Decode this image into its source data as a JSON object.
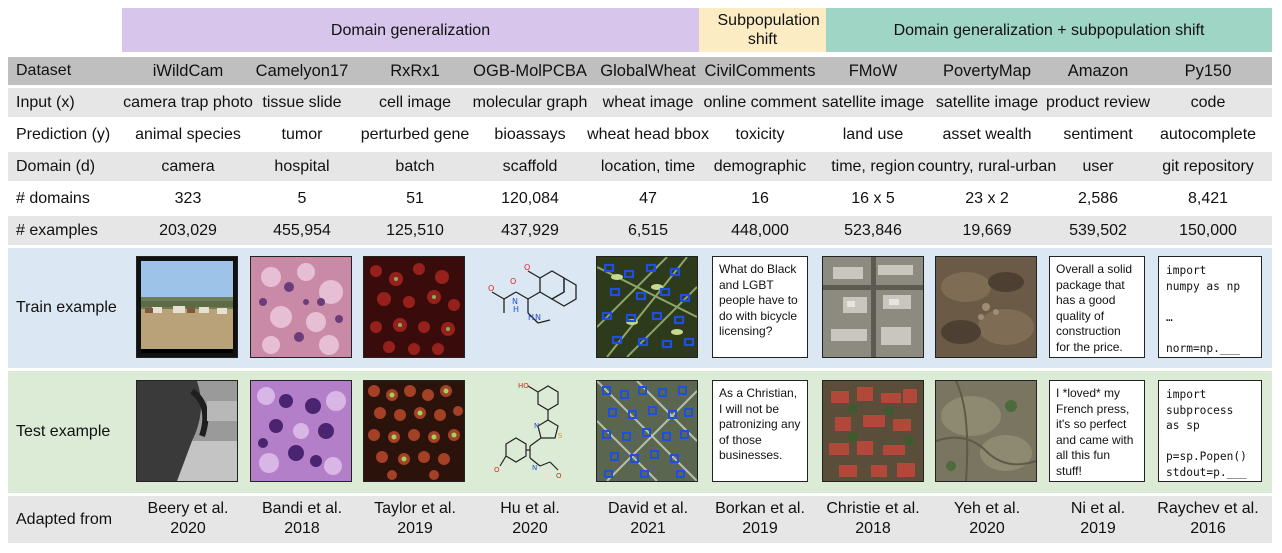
{
  "groups": [
    {
      "label": "Domain generalization",
      "color": "#d7c5eb"
    },
    {
      "label": "Subpopulation shift",
      "color": "#fbecc4"
    },
    {
      "label": "Domain generalization + subpopulation shift",
      "color": "#9fd5c4"
    }
  ],
  "row_labels": {
    "dataset": "Dataset",
    "input": "Input (x)",
    "prediction": "Prediction (y)",
    "domain": "Domain (d)",
    "num_domains": "# domains",
    "num_examples": "# examples",
    "train": "Train example",
    "test": "Test example",
    "adapted": "Adapted from"
  },
  "datasets": [
    {
      "name": "iWildCam",
      "input": "camera trap photo",
      "prediction": "animal species",
      "domain": "camera",
      "num_domains": "323",
      "num_examples": "203,029",
      "adapted_1": "Beery et al.",
      "adapted_2": "2020"
    },
    {
      "name": "Camelyon17",
      "input": "tissue slide",
      "prediction": "tumor",
      "domain": "hospital",
      "num_domains": "5",
      "num_examples": "455,954",
      "adapted_1": "Bandi et al.",
      "adapted_2": "2018"
    },
    {
      "name": "RxRx1",
      "input": "cell image",
      "prediction": "perturbed gene",
      "domain": "batch",
      "num_domains": "51",
      "num_examples": "125,510",
      "adapted_1": "Taylor et al.",
      "adapted_2": "2019"
    },
    {
      "name": "OGB-MolPCBA",
      "input": "molecular graph",
      "prediction": "bioassays",
      "domain": "scaffold",
      "num_domains": "120,084",
      "num_examples": "437,929",
      "adapted_1": "Hu et al.",
      "adapted_2": "2020"
    },
    {
      "name": "GlobalWheat",
      "input": "wheat image",
      "prediction": "wheat head bbox",
      "domain": "location, time",
      "num_domains": "47",
      "num_examples": "6,515",
      "adapted_1": "David et al.",
      "adapted_2": "2021"
    },
    {
      "name": "CivilComments",
      "input": "online comment",
      "prediction": "toxicity",
      "domain": "demographic",
      "num_domains": "16",
      "num_examples": "448,000",
      "adapted_1": "Borkan et al.",
      "adapted_2": "2019"
    },
    {
      "name": "FMoW",
      "input": "satellite image",
      "prediction": "land use",
      "domain": "time, region",
      "num_domains": "16 x 5",
      "num_examples": "523,846",
      "adapted_1": "Christie et al.",
      "adapted_2": "2018"
    },
    {
      "name": "PovertyMap",
      "input": "satellite image",
      "prediction": "asset wealth",
      "domain": "country, rural-urban",
      "num_domains": "23 x 2",
      "num_examples": "19,669",
      "adapted_1": "Yeh et al.",
      "adapted_2": "2020"
    },
    {
      "name": "Amazon",
      "input": "product review",
      "prediction": "sentiment",
      "domain": "user",
      "num_domains": "2,586",
      "num_examples": "539,502",
      "adapted_1": "Ni et al.",
      "adapted_2": "2019"
    },
    {
      "name": "Py150",
      "input": "code",
      "prediction": "autocomplete",
      "domain": "git repository",
      "num_domains": "8,421",
      "num_examples": "150,000",
      "adapted_1": "Raychev et al.",
      "adapted_2": "2016"
    }
  ],
  "examples": {
    "civil_train": "What do Black and LGBT people have to do with bicycle licensing?",
    "civil_test": "As a Christian, I will not be patronizing any of those businesses.",
    "amazon_train": "Overall a solid package that has a good quality of construction for the price.",
    "amazon_test": "I *loved* my French press, it's so perfect and came with all this fun stuff!",
    "py_train": "import\nnumpy as np\n\n…\n\nnorm=np.___",
    "py_test": "import\nsubprocess\nas sp\n\np=sp.Popen()\nstdout=p.___"
  },
  "colors": {
    "header_row": "#bfbfbf",
    "alt_row": "#e6e6e6",
    "train_band": "#dbe7f2",
    "test_band": "#dcebd6",
    "adapted_row": "#e6e6e6"
  }
}
